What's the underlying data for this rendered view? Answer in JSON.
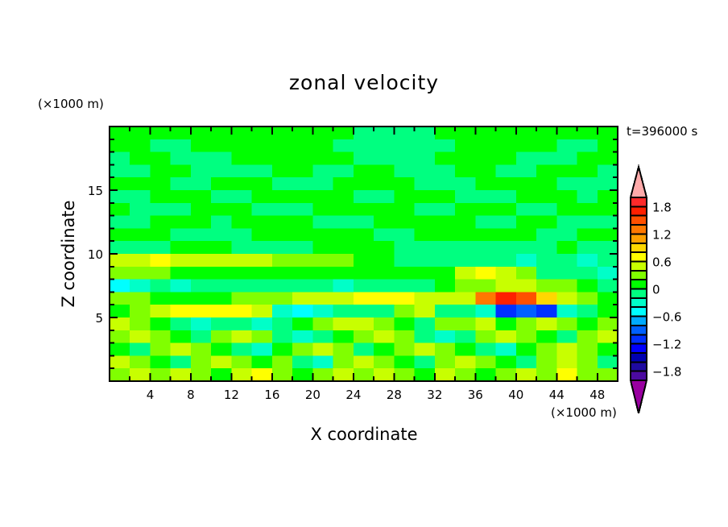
{
  "chart_data": {
    "type": "heatmap",
    "title": "zonal velocity",
    "xlabel": "X coordinate",
    "ylabel": "Z coordinate",
    "x_unit": "(×1000 m)",
    "y_unit": "(×1000 m)",
    "annotation": "t=396000 s",
    "xlim": [
      0,
      50
    ],
    "ylim": [
      0,
      20
    ],
    "x_ticks": [
      4,
      8,
      12,
      16,
      20,
      24,
      28,
      32,
      36,
      40,
      44,
      48
    ],
    "y_ticks": [
      5,
      10,
      15
    ],
    "x_tick_labels": [
      "4",
      "8",
      "12",
      "16",
      "20",
      "24",
      "28",
      "32",
      "36",
      "40",
      "44",
      "48"
    ],
    "y_tick_labels": [
      "5",
      "10",
      "15"
    ],
    "grid": false,
    "x_centers": [
      1,
      3,
      5,
      7,
      9,
      11,
      13,
      15,
      17,
      19,
      21,
      23,
      25,
      27,
      29,
      31,
      33,
      35,
      37,
      39,
      41,
      43,
      45,
      47,
      49
    ],
    "z_centers": [
      19.5,
      18.5,
      17.5,
      16.5,
      15.5,
      14.5,
      13.5,
      12.5,
      11.5,
      10.5,
      9.5,
      8.5,
      7.5,
      6.5,
      5.5,
      4.5,
      3.5,
      2.5,
      1.5,
      0.5
    ],
    "values": [
      [
        0,
        0,
        0,
        0,
        0,
        0,
        0,
        0,
        0,
        0,
        0,
        0,
        -0.2,
        -0.2,
        -0.2,
        -0.2,
        0,
        0,
        0,
        0,
        0,
        0,
        0,
        0,
        0
      ],
      [
        0,
        0,
        -0.2,
        -0.2,
        0,
        0,
        0,
        0,
        0,
        0,
        0,
        -0.2,
        -0.2,
        -0.2,
        -0.2,
        -0.2,
        -0.2,
        0,
        0,
        0,
        0,
        0,
        -0.2,
        -0.2,
        0
      ],
      [
        -0.2,
        0,
        0,
        -0.2,
        -0.2,
        -0.2,
        0,
        0,
        0,
        0,
        0,
        0,
        -0.2,
        -0.2,
        -0.2,
        -0.2,
        0,
        0,
        0,
        0,
        -0.2,
        -0.2,
        -0.2,
        0,
        0
      ],
      [
        -0.2,
        -0.2,
        0,
        0,
        -0.2,
        -0.2,
        -0.2,
        -0.2,
        0,
        0,
        -0.2,
        -0.2,
        0,
        0,
        -0.2,
        -0.2,
        -0.2,
        0,
        0,
        -0.2,
        -0.2,
        0,
        0,
        0,
        -0.2
      ],
      [
        0,
        0,
        0,
        -0.2,
        -0.2,
        0,
        0,
        0,
        -0.2,
        -0.2,
        -0.2,
        0,
        0,
        0,
        0,
        -0.2,
        -0.2,
        -0.2,
        0,
        0,
        0,
        0,
        -0.2,
        -0.2,
        -0.2
      ],
      [
        -0.2,
        -0.2,
        0,
        0,
        0,
        -0.2,
        -0.2,
        0,
        0,
        0,
        0,
        0,
        -0.2,
        -0.2,
        0,
        0,
        0,
        -0.2,
        -0.2,
        -0.2,
        0,
        0,
        0,
        -0.2,
        0
      ],
      [
        0,
        -0.2,
        -0.2,
        -0.2,
        0,
        0,
        0,
        -0.2,
        -0.2,
        -0.2,
        0,
        0,
        0,
        0,
        0,
        -0.2,
        -0.2,
        0,
        0,
        0,
        -0.2,
        -0.2,
        0,
        0,
        0
      ],
      [
        -0.2,
        -0.2,
        0,
        0,
        0,
        -0.2,
        0,
        0,
        0,
        0,
        -0.2,
        -0.2,
        -0.2,
        0,
        0,
        0,
        0,
        0,
        -0.2,
        -0.2,
        0,
        0,
        -0.2,
        -0.2,
        -0.2
      ],
      [
        0,
        0,
        0,
        -0.2,
        -0.2,
        -0.2,
        -0.2,
        0,
        0,
        0,
        0,
        0,
        0,
        -0.2,
        -0.2,
        0,
        0,
        0,
        0,
        0,
        0,
        -0.2,
        -0.2,
        0,
        0
      ],
      [
        -0.2,
        -0.2,
        -0.2,
        0,
        0,
        0,
        -0.2,
        -0.2,
        -0.2,
        -0.2,
        0,
        0,
        0,
        0,
        -0.2,
        -0.2,
        -0.2,
        -0.2,
        -0.2,
        -0.2,
        -0.2,
        -0.2,
        0,
        -0.2,
        -0.2
      ],
      [
        0.4,
        0.4,
        0.6,
        0.4,
        0.4,
        0.4,
        0.4,
        0.4,
        0.2,
        0.2,
        0.2,
        0.2,
        0,
        0,
        -0.2,
        -0.2,
        -0.2,
        -0.2,
        -0.2,
        -0.2,
        -0.4,
        -0.2,
        -0.2,
        -0.4,
        -0.2
      ],
      [
        0.2,
        0.2,
        0.2,
        0,
        0,
        0,
        0,
        0,
        0,
        0,
        0,
        0,
        0,
        0,
        0,
        0,
        0,
        0.4,
        0.6,
        0.4,
        0.2,
        -0.2,
        -0.2,
        -0.2,
        -0.4
      ],
      [
        -0.6,
        -0.4,
        -0.2,
        -0.4,
        -0.2,
        -0.2,
        -0.2,
        -0.2,
        -0.2,
        -0.2,
        -0.2,
        -0.4,
        -0.2,
        -0.2,
        -0.2,
        -0.2,
        0,
        0.2,
        0.2,
        0.4,
        0.4,
        0.2,
        0.2,
        0,
        -0.2
      ],
      [
        0.2,
        0.2,
        0,
        0,
        0,
        0,
        0.2,
        0.2,
        0.2,
        0.4,
        0.4,
        0.4,
        0.6,
        0.6,
        0.6,
        0.4,
        0.4,
        0.4,
        1.2,
        1.6,
        1.4,
        0.8,
        0.4,
        0.2,
        0
      ],
      [
        0,
        0.2,
        0.4,
        0.6,
        0.6,
        0.6,
        0.6,
        0.4,
        -0.4,
        -0.6,
        -0.4,
        -0.2,
        -0.2,
        -0.2,
        0.2,
        0.4,
        -0.2,
        -0.2,
        -0.4,
        -1.2,
        -1.0,
        -1.2,
        -0.4,
        -0.2,
        0
      ],
      [
        0.4,
        0.2,
        0,
        -0.2,
        -0.4,
        -0.2,
        -0.2,
        -0.4,
        -0.2,
        0,
        0.2,
        0.4,
        0.4,
        0.2,
        0,
        -0.2,
        0.2,
        0.2,
        0.4,
        0,
        0.2,
        0.4,
        0.2,
        0,
        0.2
      ],
      [
        0.2,
        0.4,
        0.2,
        0,
        -0.2,
        0.2,
        0.4,
        0.2,
        -0.2,
        -0.4,
        -0.2,
        0,
        0.2,
        0.4,
        0.2,
        -0.2,
        -0.4,
        -0.2,
        0.2,
        0.4,
        0.2,
        0,
        -0.2,
        0.2,
        0.4
      ],
      [
        0,
        -0.2,
        0.2,
        0.4,
        0.2,
        0,
        -0.2,
        -0.4,
        0,
        0.2,
        0.4,
        0.2,
        -0.2,
        0,
        0.2,
        0.4,
        0.2,
        0,
        -0.2,
        -0.4,
        0,
        0.2,
        0.4,
        0.2,
        0
      ],
      [
        0.4,
        0.2,
        0,
        -0.2,
        0.2,
        0.4,
        0.2,
        0,
        0.2,
        -0.2,
        -0.4,
        0.2,
        0.4,
        0.2,
        0,
        -0.2,
        0.2,
        0.4,
        0.2,
        0,
        -0.2,
        0.2,
        0.4,
        0.2,
        -0.2
      ],
      [
        0.2,
        0.4,
        0.2,
        0.4,
        0.2,
        0,
        0.4,
        0.6,
        0.2,
        0,
        0.2,
        0.4,
        0.2,
        0.4,
        0.2,
        0,
        0.4,
        0.2,
        0,
        0.2,
        0.4,
        0.2,
        0.6,
        0.2,
        0.2
      ]
    ],
    "colorbar": {
      "levels_min": -2,
      "levels_max": 2,
      "step": 0.2,
      "tick_values": [
        1.8,
        1.2,
        0.6,
        0,
        -0.6,
        -1.2,
        -1.8
      ],
      "tick_labels": [
        "1.8",
        "1.2",
        "0.6",
        "0",
        "−0.6",
        "−1.2",
        "−1.8"
      ],
      "colors_bottom_to_top": [
        "#4b0aa0",
        "#1e0aa0",
        "#0000b0",
        "#0000ff",
        "#0030ff",
        "#0060ff",
        "#00aaff",
        "#00ffff",
        "#00ffc8",
        "#00ff80",
        "#00ff00",
        "#80ff00",
        "#c8ff00",
        "#ffff00",
        "#ffd700",
        "#ffa000",
        "#ff7800",
        "#ff5000",
        "#ff2000",
        "#ff2a2a"
      ],
      "over_color": "#ffaaaa",
      "under_color": "#9900a0"
    }
  }
}
